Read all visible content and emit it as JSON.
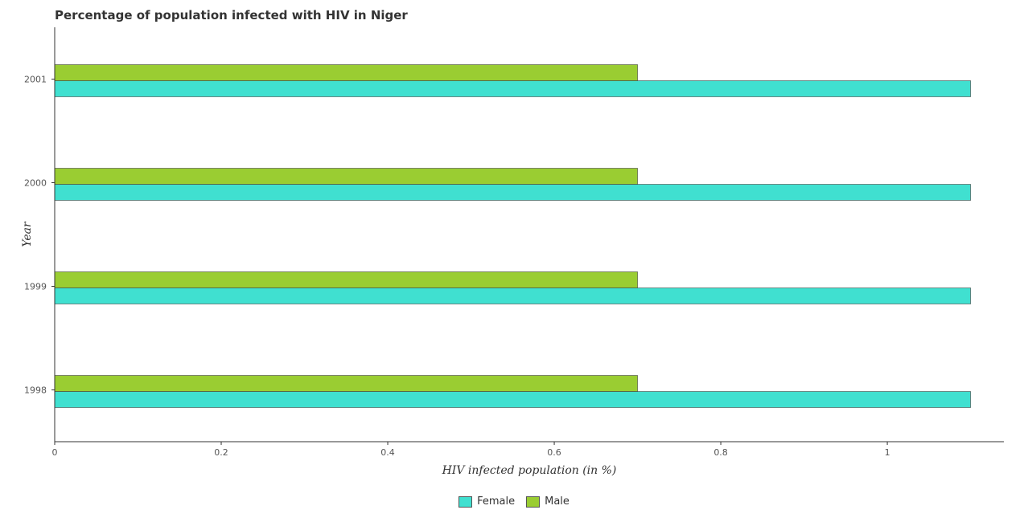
{
  "chart_data": {
    "type": "bar",
    "orientation": "horizontal",
    "title": "Percentage of population infected with HIV in Niger",
    "xlabel": "HIV infected population (in %)",
    "ylabel": "Year",
    "categories": [
      "1998",
      "1999",
      "2000",
      "2001"
    ],
    "series": [
      {
        "name": "Female",
        "values": [
          1.1,
          1.1,
          1.1,
          1.1
        ],
        "color": "#40e0d0"
      },
      {
        "name": "Male",
        "values": [
          0.7,
          0.7,
          0.7,
          0.7
        ],
        "color": "#9acd32"
      }
    ],
    "xlim": [
      0,
      1.14
    ],
    "xticks": [
      0,
      0.2,
      0.4,
      0.6,
      0.8,
      1
    ],
    "xtick_labels": [
      "0",
      "0.2",
      "0.4",
      "0.6",
      "0.8",
      "1"
    ],
    "grid": false,
    "legend": "bottom-center"
  }
}
